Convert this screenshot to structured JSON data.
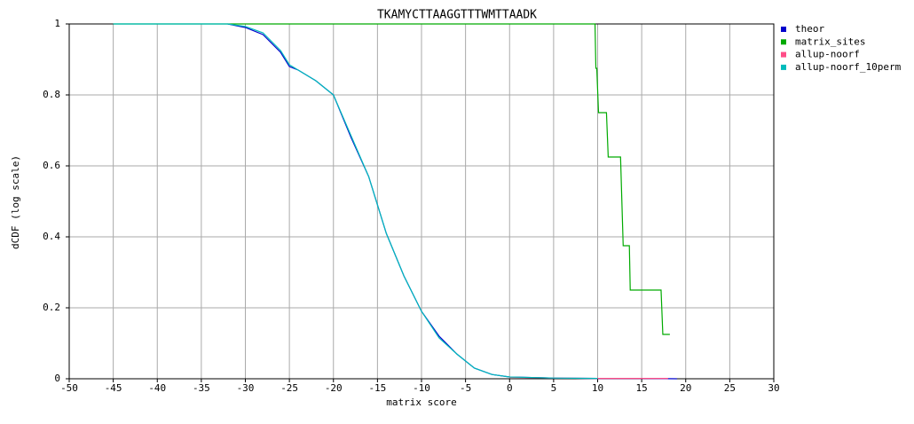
{
  "chart_data": {
    "type": "line",
    "title": "TKAMYCTTAAGGTTTWMTTAADK",
    "x_label": "matrix score",
    "y_label": "dCDF (log scale)",
    "xlim": [
      -50,
      30
    ],
    "xticks": [
      -50,
      -45,
      -40,
      -35,
      -30,
      -25,
      -20,
      -15,
      -10,
      -5,
      0,
      5,
      10,
      15,
      20,
      25,
      30
    ],
    "ylim": [
      0,
      1
    ],
    "yticks": [
      0,
      0.2,
      0.4,
      0.6,
      0.8,
      1
    ],
    "grid": true,
    "legend": "right",
    "series": [
      {
        "name": "theor",
        "color": "#0000cc",
        "x": [
          -32,
          -30,
          -28,
          -26,
          -25,
          -24,
          -22,
          -20,
          -18,
          -16,
          -14,
          -12,
          -10,
          -8,
          -6,
          -4,
          -2,
          0,
          5,
          10,
          15,
          19
        ],
        "values": [
          1,
          0.99,
          0.97,
          0.92,
          0.88,
          0.87,
          0.84,
          0.8,
          0.68,
          0.57,
          0.41,
          0.29,
          0.19,
          0.12,
          0.07,
          0.03,
          0.012,
          0.005,
          0.002,
          0.001,
          0.001,
          0
        ]
      },
      {
        "name": "matrix_sites",
        "color": "#00aa00",
        "x": [
          -45,
          9.7,
          9.8,
          9.9,
          10.1,
          11.0,
          11.2,
          12.6,
          12.9,
          13.6,
          13.7,
          17.2,
          17.4,
          18.2
        ],
        "values": [
          1,
          1,
          0.875,
          0.875,
          0.75,
          0.75,
          0.625,
          0.625,
          0.375,
          0.375,
          0.25,
          0.25,
          0.125,
          0.125
        ]
      },
      {
        "name": "allup-noorf",
        "color": "#ff4d88",
        "x": [
          0,
          5,
          10,
          15,
          18
        ],
        "values": [
          0.004,
          0.002,
          0.001,
          0.001,
          0.001
        ]
      },
      {
        "name": "allup-noorf_10perm",
        "color": "#00bbbb",
        "x": [
          -45,
          -32,
          -30,
          -28,
          -26,
          -25,
          -24,
          -22,
          -20,
          -18,
          -16,
          -14,
          -12,
          -10,
          -8,
          -6,
          -4,
          -2,
          0,
          5,
          10
        ],
        "values": [
          1,
          1,
          0.993,
          0.975,
          0.925,
          0.885,
          0.87,
          0.84,
          0.8,
          0.685,
          0.57,
          0.41,
          0.29,
          0.19,
          0.115,
          0.07,
          0.03,
          0.012,
          0.005,
          0.002,
          0.001
        ]
      }
    ]
  }
}
